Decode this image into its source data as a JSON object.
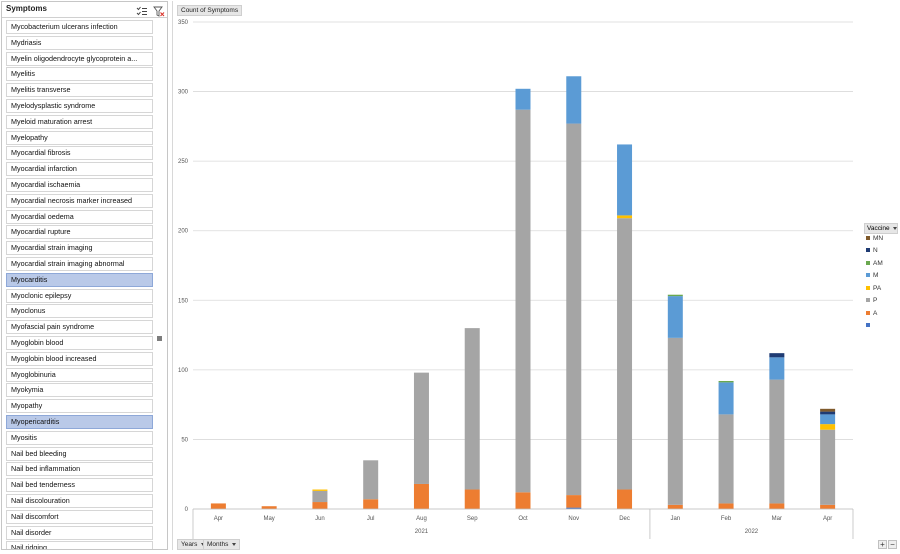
{
  "slicer": {
    "title": "Symptoms",
    "items": [
      {
        "label": "Mycobacterium ulcerans infection",
        "selected": false
      },
      {
        "label": "Mydriasis",
        "selected": false
      },
      {
        "label": "Myelin oligodendrocyte glycoprotein a...",
        "selected": false
      },
      {
        "label": "Myelitis",
        "selected": false
      },
      {
        "label": "Myelitis transverse",
        "selected": false
      },
      {
        "label": "Myelodysplastic syndrome",
        "selected": false
      },
      {
        "label": "Myeloid maturation arrest",
        "selected": false
      },
      {
        "label": "Myelopathy",
        "selected": false
      },
      {
        "label": "Myocardial fibrosis",
        "selected": false
      },
      {
        "label": "Myocardial infarction",
        "selected": false
      },
      {
        "label": "Myocardial ischaemia",
        "selected": false
      },
      {
        "label": "Myocardial necrosis marker increased",
        "selected": false
      },
      {
        "label": "Myocardial oedema",
        "selected": false
      },
      {
        "label": "Myocardial rupture",
        "selected": false
      },
      {
        "label": "Myocardial strain imaging",
        "selected": false
      },
      {
        "label": "Myocardial strain imaging abnormal",
        "selected": false
      },
      {
        "label": "Myocarditis",
        "selected": true
      },
      {
        "label": "Myoclonic epilepsy",
        "selected": false
      },
      {
        "label": "Myoclonus",
        "selected": false
      },
      {
        "label": "Myofascial pain syndrome",
        "selected": false
      },
      {
        "label": "Myoglobin blood",
        "selected": false
      },
      {
        "label": "Myoglobin blood increased",
        "selected": false
      },
      {
        "label": "Myoglobinuria",
        "selected": false
      },
      {
        "label": "Myokymia",
        "selected": false
      },
      {
        "label": "Myopathy",
        "selected": false
      },
      {
        "label": "Myopericarditis",
        "selected": true
      },
      {
        "label": "Myositis",
        "selected": false
      },
      {
        "label": "Nail bed bleeding",
        "selected": false
      },
      {
        "label": "Nail bed inflammation",
        "selected": false
      },
      {
        "label": "Nail bed tenderness",
        "selected": false
      },
      {
        "label": "Nail discolouration",
        "selected": false
      },
      {
        "label": "Nail discomfort",
        "selected": false
      },
      {
        "label": "Nail disorder",
        "selected": false
      },
      {
        "label": "Nail ridging",
        "selected": false
      }
    ]
  },
  "chart": {
    "value_field_label": "Count of Symptoms",
    "legend_title": "Vaccine",
    "axis_buttons": {
      "years": "Years",
      "months": "Months"
    },
    "zoom": {
      "plus": "+",
      "minus": "−"
    }
  },
  "colors": {
    "MN": "#7f5a2c",
    "N": "#1f3b73",
    "AM": "#6aa84f",
    "M": "#5b9bd5",
    "PA": "#ffc000",
    "P": "#a5a5a5",
    "A": "#ed7d31",
    "blank": "#4472c4",
    "grid": "#d9d9d9",
    "selected_item": "#b9c9e8"
  },
  "chart_data": {
    "type": "bar",
    "stacked": true,
    "categories": [
      "Apr",
      "May",
      "Jun",
      "Jul",
      "Aug",
      "Sep",
      "Oct",
      "Nov",
      "Dec",
      "Jan",
      "Feb",
      "Mar",
      "Apr"
    ],
    "year_groups": [
      {
        "label": "2021",
        "count": 9
      },
      {
        "label": "2022",
        "count": 4
      }
    ],
    "ylim": [
      0,
      350
    ],
    "yticks": [
      0,
      50,
      100,
      150,
      200,
      250,
      300,
      350
    ],
    "grid": true,
    "legend_position": "right",
    "legend": [
      "MN",
      "N",
      "AM",
      "M",
      "PA",
      "P",
      "A",
      ""
    ],
    "series": [
      {
        "name": "",
        "color_key": "blank",
        "values": [
          0,
          0,
          0,
          0,
          0,
          0,
          0,
          1,
          0,
          0,
          0,
          0,
          0
        ]
      },
      {
        "name": "A",
        "color_key": "A",
        "values": [
          4,
          2,
          5,
          7,
          18,
          14,
          12,
          9,
          14,
          3,
          4,
          4,
          3
        ]
      },
      {
        "name": "P",
        "color_key": "P",
        "values": [
          0,
          0,
          8,
          28,
          80,
          116,
          275,
          267,
          195,
          120,
          64,
          89,
          54
        ]
      },
      {
        "name": "PA",
        "color_key": "PA",
        "values": [
          0,
          0,
          1,
          0,
          0,
          0,
          0,
          0,
          2,
          0,
          0,
          0,
          4
        ]
      },
      {
        "name": "M",
        "color_key": "M",
        "values": [
          0,
          0,
          0,
          0,
          0,
          0,
          15,
          34,
          51,
          30,
          23,
          16,
          7
        ]
      },
      {
        "name": "AM",
        "color_key": "AM",
        "values": [
          0,
          0,
          0,
          0,
          0,
          0,
          0,
          0,
          0,
          1,
          1,
          0,
          0
        ]
      },
      {
        "name": "N",
        "color_key": "N",
        "values": [
          0,
          0,
          0,
          0,
          0,
          0,
          0,
          0,
          0,
          0,
          0,
          3,
          2
        ]
      },
      {
        "name": "MN",
        "color_key": "MN",
        "values": [
          0,
          0,
          0,
          0,
          0,
          0,
          0,
          0,
          0,
          0,
          0,
          0,
          2
        ]
      }
    ]
  }
}
